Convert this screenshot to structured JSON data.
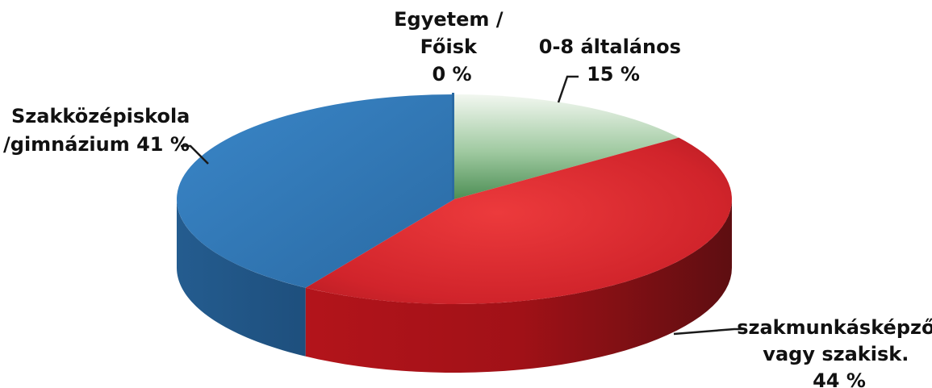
{
  "chart_data": {
    "type": "pie",
    "style": "3d",
    "slices": [
      {
        "key": "altalanos",
        "label_lines": [
          "0-8 általános",
          "15 %"
        ],
        "value": 15,
        "color": "#6fae73"
      },
      {
        "key": "szakmunkas",
        "label_lines": [
          "szakmunkásképző",
          "vagy szakisk.",
          "44 %"
        ],
        "value": 44,
        "color": "#d8282e"
      },
      {
        "key": "szakkozep",
        "label_lines": [
          "Szakközépiskola",
          "/gimnázium 41 %"
        ],
        "value": 41,
        "color": "#2f77b4"
      },
      {
        "key": "egyetem",
        "label_lines": [
          "Egyetem /",
          "Főisk",
          "0 %"
        ],
        "value": 0,
        "color": "#e6e6e6"
      }
    ],
    "title": "",
    "legend": "none"
  }
}
